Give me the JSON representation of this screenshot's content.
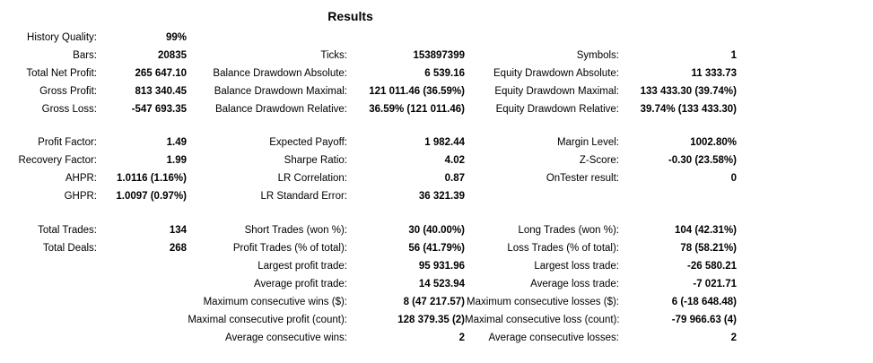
{
  "title": "Results",
  "sections": [
    [
      [
        [
          "History Quality:",
          "99%"
        ],
        null,
        null
      ],
      [
        [
          "Bars:",
          "20835"
        ],
        [
          "Ticks:",
          "153897399"
        ],
        [
          "Symbols:",
          "1"
        ]
      ],
      [
        [
          "Total Net Profit:",
          "265 647.10"
        ],
        [
          "Balance Drawdown Absolute:",
          "6 539.16"
        ],
        [
          "Equity Drawdown Absolute:",
          "11 333.73"
        ]
      ],
      [
        [
          "Gross Profit:",
          "813 340.45"
        ],
        [
          "Balance Drawdown Maximal:",
          "121 011.46 (36.59%)"
        ],
        [
          "Equity Drawdown Maximal:",
          "133 433.30 (39.74%)"
        ]
      ],
      [
        [
          "Gross Loss:",
          "-547 693.35"
        ],
        [
          "Balance Drawdown Relative:",
          "36.59% (121 011.46)"
        ],
        [
          "Equity Drawdown Relative:",
          "39.74% (133 433.30)"
        ]
      ]
    ],
    [
      [
        [
          "Profit Factor:",
          "1.49"
        ],
        [
          "Expected Payoff:",
          "1 982.44"
        ],
        [
          "Margin Level:",
          "1002.80%"
        ]
      ],
      [
        [
          "Recovery Factor:",
          "1.99"
        ],
        [
          "Sharpe Ratio:",
          "4.02"
        ],
        [
          "Z-Score:",
          "-0.30 (23.58%)"
        ]
      ],
      [
        [
          "AHPR:",
          "1.0116 (1.16%)"
        ],
        [
          "LR Correlation:",
          "0.87"
        ],
        [
          "OnTester result:",
          "0"
        ]
      ],
      [
        [
          "GHPR:",
          "1.0097 (0.97%)"
        ],
        [
          "LR Standard Error:",
          "36 321.39"
        ],
        null
      ]
    ],
    [
      [
        [
          "Total Trades:",
          "134"
        ],
        [
          "Short Trades (won %):",
          "30 (40.00%)"
        ],
        [
          "Long Trades (won %):",
          "104 (42.31%)"
        ]
      ],
      [
        [
          "Total Deals:",
          "268"
        ],
        [
          "Profit Trades (% of total):",
          "56 (41.79%)"
        ],
        [
          "Loss Trades (% of total):",
          "78 (58.21%)"
        ]
      ],
      [
        null,
        [
          "Largest profit trade:",
          "95 931.96"
        ],
        [
          "Largest loss trade:",
          "-26 580.21"
        ]
      ],
      [
        null,
        [
          "Average profit trade:",
          "14 523.94"
        ],
        [
          "Average loss trade:",
          "-7 021.71"
        ]
      ],
      [
        null,
        [
          "Maximum consecutive wins ($):",
          "8 (47 217.57)"
        ],
        [
          "Maximum consecutive losses ($):",
          "6 (-18 648.48)"
        ]
      ],
      [
        null,
        [
          "Maximal consecutive profit (count):",
          "128 379.35 (2)"
        ],
        [
          "Maximal consecutive loss (count):",
          "-79 966.63 (4)"
        ]
      ],
      [
        null,
        [
          "Average consecutive wins:",
          "2"
        ],
        [
          "Average consecutive losses:",
          "2"
        ]
      ]
    ]
  ]
}
